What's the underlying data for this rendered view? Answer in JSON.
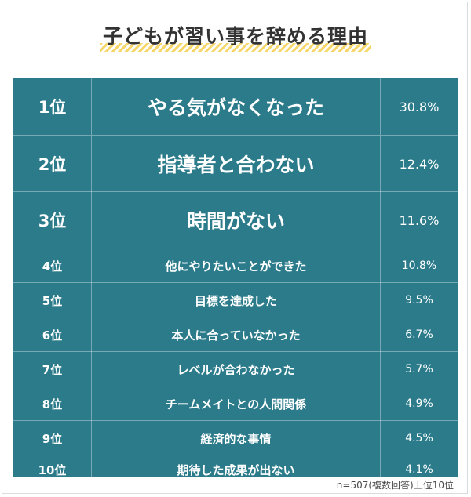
{
  "title": "子どもが習い事を辞める理由",
  "note": "n=507(複数回答)上位10位",
  "colors": {
    "table_bg": "#2b7b8b",
    "highlight": "#f6d76b",
    "text": "#ffffff"
  },
  "chart_data": {
    "type": "table",
    "title": "子どもが習い事を辞める理由",
    "columns": [
      "rank",
      "reason",
      "percent"
    ],
    "rows": [
      {
        "rank": "1位",
        "reason": "やる気がなくなった",
        "value": "30.8%"
      },
      {
        "rank": "2位",
        "reason": "指導者と合わない",
        "value": "12.4%"
      },
      {
        "rank": "3位",
        "reason": "時間がない",
        "value": "11.6%"
      },
      {
        "rank": "4位",
        "reason": "他にやりたいことができた",
        "value": "10.8%"
      },
      {
        "rank": "5位",
        "reason": "目標を達成した",
        "value": "9.5%"
      },
      {
        "rank": "6位",
        "reason": "本人に合っていなかった",
        "value": "6.7%"
      },
      {
        "rank": "7位",
        "reason": "レベルが合わなかった",
        "value": "5.7%"
      },
      {
        "rank": "8位",
        "reason": "チームメイトとの人間関係",
        "value": "4.9%"
      },
      {
        "rank": "9位",
        "reason": "経済的な事情",
        "value": "4.5%"
      },
      {
        "rank": "10位",
        "reason": "期待した成果が出ない",
        "value": "4.1%"
      }
    ]
  }
}
